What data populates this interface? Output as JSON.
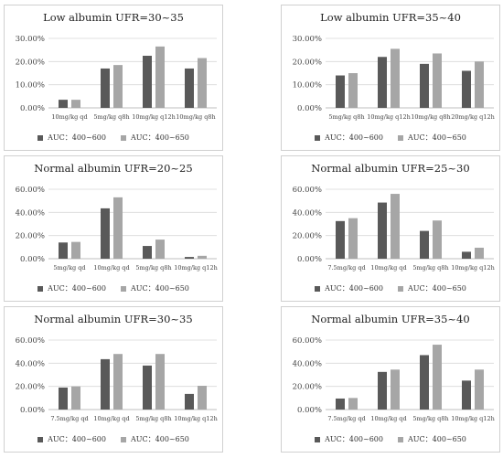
{
  "legend": {
    "s1": "AUC：400~600",
    "s2": "AUC：400~650"
  },
  "colors": {
    "s1": "#595959",
    "s2": "#a6a6a6",
    "grid": "#d9d9d9",
    "axis": "#bfbfbf",
    "text": "#444444"
  },
  "chart_data": [
    {
      "type": "bar",
      "title": "Low albumin UFR=30~35",
      "categories": [
        "10mg/kg qd",
        "5mg/kg q8h",
        "10mg/kg q12h",
        "10mg/kg q8h"
      ],
      "series": [
        {
          "name": "AUC：400~600",
          "values": [
            3.5,
            17.0,
            22.5,
            17.0
          ]
        },
        {
          "name": "AUC：400~650",
          "values": [
            3.5,
            18.5,
            26.5,
            21.5
          ]
        }
      ],
      "yticks": [
        "0.00%",
        "10.00%",
        "20.00%",
        "30.00%"
      ],
      "ylim": [
        0,
        30
      ]
    },
    {
      "type": "bar",
      "title": "Low albumin UFR=35~40",
      "categories": [
        "5mg/kg q8h",
        "10mg/kg q12h",
        "10mg/kg q8h",
        "20mg/kg q12h"
      ],
      "series": [
        {
          "name": "AUC：400~600",
          "values": [
            14.0,
            22.0,
            19.0,
            16.0
          ]
        },
        {
          "name": "AUC：400~650",
          "values": [
            15.0,
            25.5,
            23.5,
            20.0
          ]
        }
      ],
      "yticks": [
        "0.00%",
        "10.00%",
        "20.00%",
        "30.00%"
      ],
      "ylim": [
        0,
        30
      ]
    },
    {
      "type": "bar",
      "title": "Normal albumin UFR=20~25",
      "categories": [
        "5mg/kg qd",
        "10mg/kg qd",
        "5mg/kg q8h",
        "10mg/kg q12h"
      ],
      "series": [
        {
          "name": "AUC：400~600",
          "values": [
            14.0,
            43.5,
            11.0,
            1.5
          ]
        },
        {
          "name": "AUC：400~650",
          "values": [
            14.5,
            53.0,
            16.5,
            2.5
          ]
        }
      ],
      "yticks": [
        "0.00%",
        "20.00%",
        "40.00%",
        "60.00%"
      ],
      "ylim": [
        0,
        60
      ]
    },
    {
      "type": "bar",
      "title": "Normal albumin UFR=25~30",
      "categories": [
        "7.5mg/kg qd",
        "10mg/kg qd",
        "5mg/kg q8h",
        "10mg/kg q12h"
      ],
      "series": [
        {
          "name": "AUC：400~600",
          "values": [
            32.5,
            48.5,
            24.0,
            6.0
          ]
        },
        {
          "name": "AUC：400~650",
          "values": [
            35.0,
            56.0,
            33.0,
            9.5
          ]
        }
      ],
      "yticks": [
        "0.00%",
        "20.00%",
        "40.00%",
        "60.00%"
      ],
      "ylim": [
        0,
        60
      ]
    },
    {
      "type": "bar",
      "title": "Normal albumin UFR=30~35",
      "categories": [
        "7.5mg/kg qd",
        "10mg/kg qd",
        "5mg/kg q8h",
        "10mg/kg q12h"
      ],
      "series": [
        {
          "name": "AUC：400~600",
          "values": [
            19.0,
            43.5,
            38.0,
            13.5
          ]
        },
        {
          "name": "AUC：400~650",
          "values": [
            20.0,
            48.0,
            48.0,
            20.5
          ]
        }
      ],
      "yticks": [
        "0.00%",
        "20.00%",
        "40.00%",
        "60.00%"
      ],
      "ylim": [
        0,
        60
      ]
    },
    {
      "type": "bar",
      "title": "Normal albumin UFR=35~40",
      "categories": [
        "7.5mg/kg qd",
        "10mg/kg qd",
        "5mg/kg q8h",
        "10mg/kg q12h"
      ],
      "series": [
        {
          "name": "AUC：400~600",
          "values": [
            9.5,
            32.5,
            47.0,
            25.0
          ]
        },
        {
          "name": "AUC：400~650",
          "values": [
            10.0,
            34.5,
            56.0,
            34.5
          ]
        }
      ],
      "yticks": [
        "0.00%",
        "20.00%",
        "40.00%",
        "60.00%"
      ],
      "ylim": [
        0,
        60
      ]
    }
  ]
}
